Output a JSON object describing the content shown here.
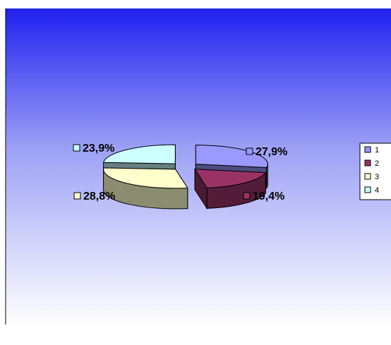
{
  "chart_data": {
    "type": "pie",
    "variant": "3d-exploded",
    "title": "",
    "categories": [
      "1",
      "2",
      "3",
      "4"
    ],
    "values": [
      27.9,
      19.4,
      28.8,
      23.9
    ],
    "data_labels": [
      "27,9%",
      "19,4%",
      "28,8%",
      "23,9%"
    ],
    "legend": {
      "position": "right",
      "entries": [
        "1",
        "2",
        "3",
        "4"
      ]
    },
    "colors": [
      "#9999ff",
      "#993366",
      "#ffffcc",
      "#ccffff"
    ],
    "background": {
      "gradient_top": "#2020f0",
      "gradient_bottom": "#ffffff"
    }
  }
}
